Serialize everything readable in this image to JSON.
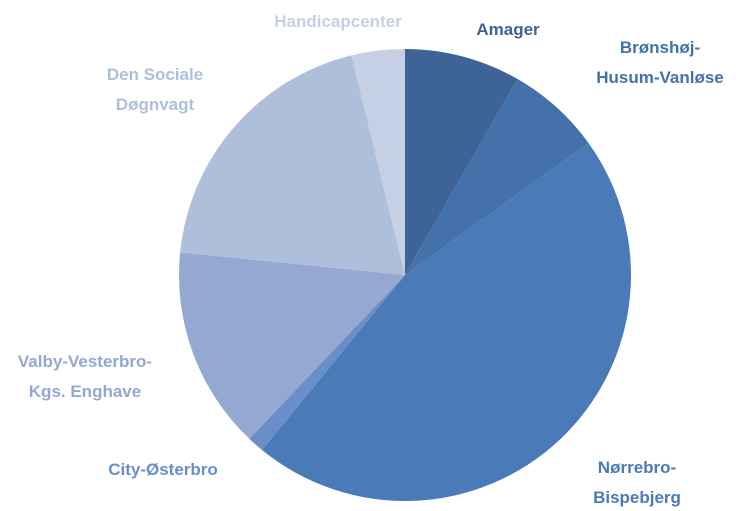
{
  "chart_data": {
    "type": "pie",
    "categories": [
      "Amager",
      "Brønshøj-Husum-Vanløse",
      "Nørrebro-Bispebjerg",
      "City-Østerbro",
      "Valby-Vesterbro-Kgs. Enghave",
      "Den Sociale Døgnvagt",
      "Handicapcenter"
    ],
    "values": [
      8.3,
      6.8,
      45.8,
      1.2,
      14.5,
      19.6,
      3.8
    ],
    "colors": [
      "#3e6397",
      "#4471a9",
      "#4a7ab8",
      "#6a8fc8",
      "#94a8d1",
      "#aebfdc",
      "#c6d0e5"
    ]
  }
}
